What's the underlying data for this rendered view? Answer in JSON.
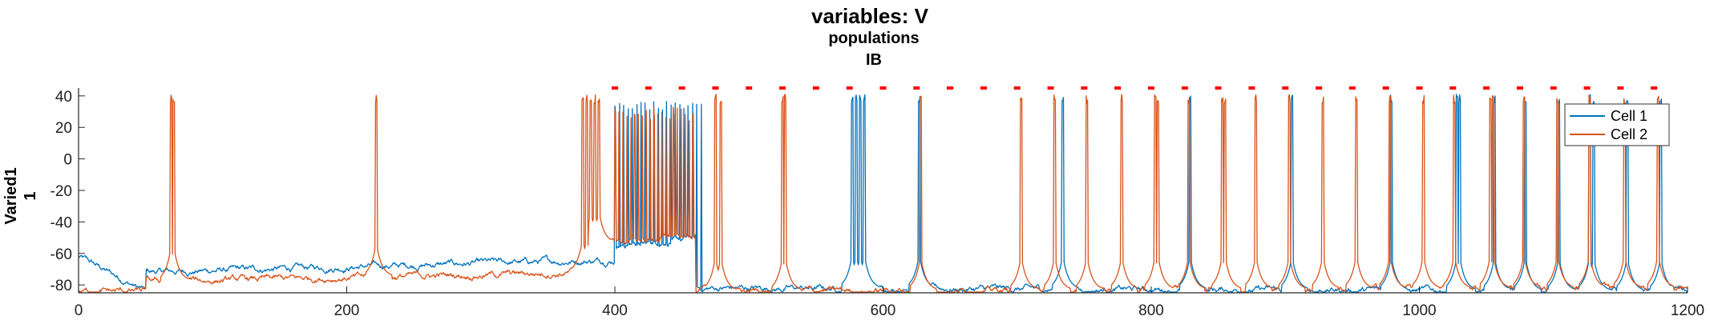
{
  "chart_data": {
    "type": "line",
    "title": "variables: V",
    "subtitle_lines": [
      "populations",
      "IB"
    ],
    "ylabel_lines": [
      "Varied1",
      "1"
    ],
    "xlabel": "",
    "xlim": [
      0,
      1200
    ],
    "ylim": [
      -85,
      45
    ],
    "xticks": [
      0,
      200,
      400,
      600,
      800,
      1000,
      1200
    ],
    "yticks": [
      -80,
      -60,
      -40,
      -20,
      0,
      20,
      40
    ],
    "legend_position": "top-right",
    "grid": false,
    "series": [
      {
        "name": "Cell 1",
        "color": "#0072BD",
        "description_points": {
          "baseline_segments": [
            {
              "x": [
                0,
                50
              ],
              "v": [
                -62,
                -84
              ]
            },
            {
              "x": [
                50,
                400
              ],
              "v": [
                -72,
                -64
              ]
            },
            {
              "x": [
                400,
                460
              ],
              "v": [
                -55,
                -50
              ]
            },
            {
              "x": [
                460,
                1200
              ],
              "v": [
                -82,
                -84
              ]
            }
          ],
          "burst_region": {
            "x_start": 400,
            "x_end": 465,
            "peak": 35
          },
          "spike_times": [
            577,
            580,
            583,
            586,
            627,
            734,
            829,
            905,
            979,
            1028,
            1030,
            1056,
            1079,
            1104,
            1127,
            1130,
            1155,
            1180
          ]
        }
      },
      {
        "name": "Cell 2",
        "color": "#D95319",
        "description_points": {
          "baseline_segments": [
            {
              "x": [
                0,
                50
              ],
              "v": [
                -84,
                -84
              ]
            },
            {
              "x": [
                50,
                380
              ],
              "v": [
                -78,
                -72
              ]
            },
            {
              "x": [
                380,
                460
              ],
              "v": [
                -55,
                -48
              ]
            },
            {
              "x": [
                460,
                1200
              ],
              "v": [
                -84,
                -82
              ]
            }
          ],
          "burst_region": {
            "x_start": 400,
            "x_end": 460,
            "peak": 30
          },
          "spike_times": [
            69,
            71,
            222,
            376,
            379,
            382,
            385,
            388,
            475,
            479,
            525,
            527,
            628,
            703,
            728,
            752,
            778,
            803,
            805,
            828,
            853,
            855,
            878,
            903,
            928,
            953,
            978,
            1003,
            1026,
            1053,
            1055,
            1078,
            1103,
            1127,
            1153,
            1178
          ]
        }
      }
    ],
    "event_markers": {
      "color": "#FF0000",
      "y": 45,
      "x": [
        400,
        425,
        450,
        475,
        500,
        525,
        550,
        575,
        600,
        625,
        650,
        675,
        700,
        725,
        750,
        775,
        800,
        825,
        850,
        875,
        900,
        925,
        950,
        975,
        1000,
        1025,
        1050,
        1075,
        1100,
        1125,
        1150,
        1175
      ]
    }
  }
}
